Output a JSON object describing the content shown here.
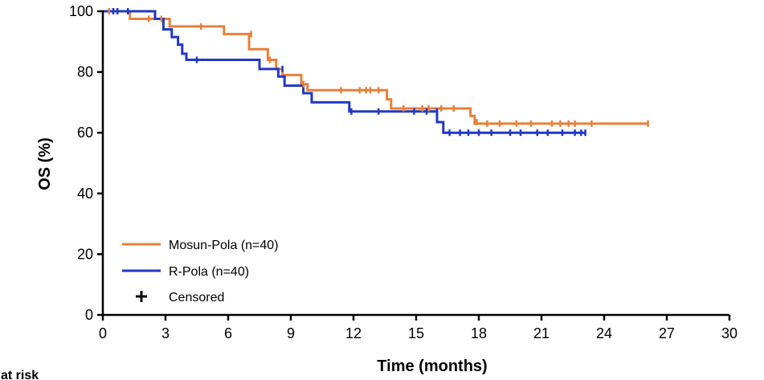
{
  "chart_data": {
    "type": "line",
    "subtype": "kaplan-meier",
    "xlabel": "Time (months)",
    "ylabel": "OS (%)",
    "xlim": [
      0,
      30
    ],
    "ylim": [
      0,
      100
    ],
    "xticks": [
      "0",
      "3",
      "6",
      "9",
      "12",
      "15",
      "18",
      "21",
      "24",
      "27",
      "30"
    ],
    "yticks": [
      "0",
      "20",
      "40",
      "60",
      "80",
      "100"
    ],
    "grid": false,
    "legend_position": "bottom-left",
    "series": [
      {
        "name": "Mosun-Pola (n=40)",
        "color": "#E8803A",
        "steps": [
          [
            0,
            100
          ],
          [
            1.3,
            97.5
          ],
          [
            3.2,
            95
          ],
          [
            5.8,
            92.5
          ],
          [
            7.0,
            87.5
          ],
          [
            7.9,
            84
          ],
          [
            8.3,
            81
          ],
          [
            8.6,
            79
          ],
          [
            9.5,
            76
          ],
          [
            9.8,
            74
          ],
          [
            13.6,
            71
          ],
          [
            13.8,
            68
          ],
          [
            17.6,
            65.5
          ],
          [
            17.8,
            63
          ],
          [
            26.1,
            63
          ]
        ],
        "censored": [
          [
            0.3,
            100
          ],
          [
            2.2,
            97.5
          ],
          [
            2.8,
            97.5
          ],
          [
            4.7,
            95
          ],
          [
            7.1,
            92.5
          ],
          [
            8.0,
            84.0
          ],
          [
            9.6,
            76
          ],
          [
            11.4,
            74
          ],
          [
            12.3,
            74
          ],
          [
            12.6,
            74
          ],
          [
            12.8,
            74
          ],
          [
            13.2,
            74
          ],
          [
            14.4,
            68
          ],
          [
            15.3,
            68
          ],
          [
            15.6,
            68
          ],
          [
            16.2,
            68
          ],
          [
            16.8,
            68
          ],
          [
            17.9,
            63.5
          ],
          [
            18.4,
            63
          ],
          [
            19.0,
            63
          ],
          [
            19.8,
            63
          ],
          [
            20.5,
            63
          ],
          [
            21.5,
            63
          ],
          [
            21.9,
            63
          ],
          [
            22.3,
            63
          ],
          [
            22.6,
            63
          ],
          [
            23.4,
            63
          ],
          [
            26.1,
            63
          ]
        ]
      },
      {
        "name": "R-Pola (n=40)",
        "color": "#2139C4",
        "steps": [
          [
            0,
            100
          ],
          [
            2.5,
            97.5
          ],
          [
            2.9,
            94
          ],
          [
            3.3,
            91.5
          ],
          [
            3.6,
            89
          ],
          [
            3.8,
            86
          ],
          [
            4.0,
            84
          ],
          [
            7.5,
            81
          ],
          [
            8.4,
            78.5
          ],
          [
            8.7,
            75.5
          ],
          [
            9.6,
            73
          ],
          [
            10.0,
            70
          ],
          [
            11.8,
            67
          ],
          [
            16.0,
            63.5
          ],
          [
            16.3,
            60
          ],
          [
            23.1,
            60
          ]
        ],
        "censored": [
          [
            0.5,
            100
          ],
          [
            0.7,
            100
          ],
          [
            1.2,
            100
          ],
          [
            4.5,
            84
          ],
          [
            8.6,
            81
          ],
          [
            11.9,
            67
          ],
          [
            13.2,
            67
          ],
          [
            14.9,
            67
          ],
          [
            15.5,
            67
          ],
          [
            16.0,
            67
          ],
          [
            16.6,
            60
          ],
          [
            17.1,
            60
          ],
          [
            17.5,
            60
          ],
          [
            18.0,
            60
          ],
          [
            18.6,
            60
          ],
          [
            19.5,
            60
          ],
          [
            20.0,
            60
          ],
          [
            20.8,
            60
          ],
          [
            21.3,
            60
          ],
          [
            22.0,
            60
          ],
          [
            22.6,
            60
          ],
          [
            22.9,
            60
          ],
          [
            23.1,
            60
          ]
        ]
      }
    ],
    "legend_censored_label": "Censored",
    "risk_table_title": "at risk"
  }
}
